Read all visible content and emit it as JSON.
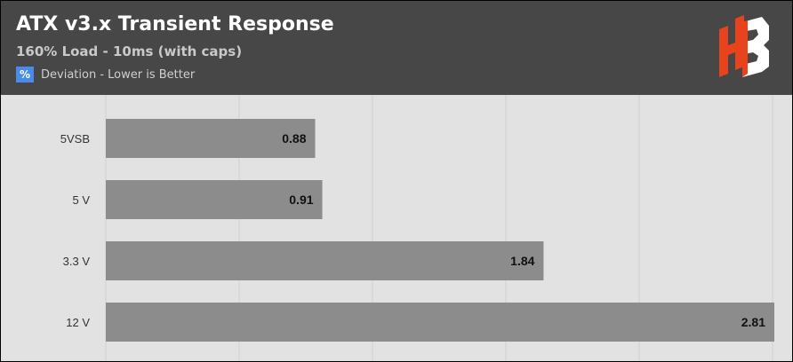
{
  "header": {
    "title": "ATX v3.x Transient Response",
    "subtitle": "160% Load - 10ms (with caps)",
    "legend_symbol": "%",
    "legend_label": "Deviation - Lower is Better",
    "legend_color": "#4a8ae8",
    "logo_icon": "hb-logo-icon"
  },
  "colors": {
    "header_bg": "#474747",
    "plot_bg": "#e2e2e2",
    "bar": "#8c8c8c",
    "gridline": "#d0d0d0"
  },
  "chart_data": {
    "type": "bar",
    "orientation": "horizontal",
    "title": "ATX v3.x Transient Response",
    "subtitle": "160% Load - 10ms (with caps)",
    "categories": [
      "5VSB",
      "5 V",
      "3.3 V",
      "12 V"
    ],
    "series": [
      {
        "name": "Deviation - Lower is Better",
        "values": [
          0.88,
          0.91,
          1.84,
          2.81
        ],
        "labels": [
          "0.88",
          "0.91",
          "1.84",
          "2.81"
        ]
      }
    ],
    "xlim": [
      0,
      2.81
    ],
    "grid": true,
    "legend_position": "top-left"
  }
}
